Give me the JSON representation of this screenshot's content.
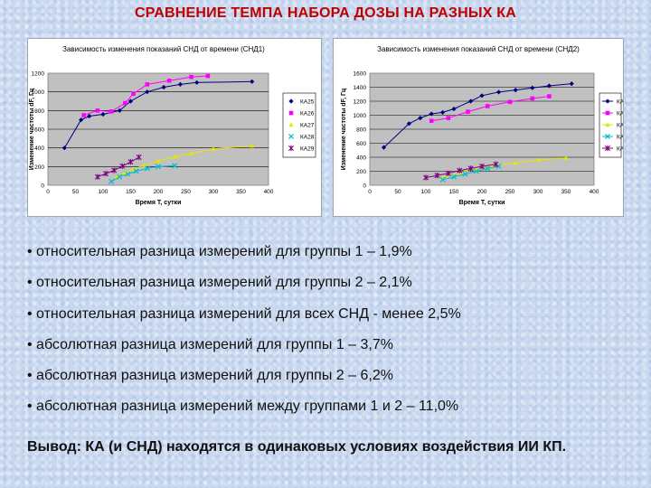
{
  "slide": {
    "title": "СРАВНЕНИЕ ТЕМПА НАБОРА ДОЗЫ НА РАЗНЫХ КА",
    "bullets": [
      "• относительная разница измерений для группы 1 – 1,9%",
      "• относительная разница измерений для группы 2 – 2,1%",
      "• относительная разница измерений для всех СНД - менее 2,5%",
      "• абсолютная разница измерений для группы 1 – 3,7%",
      "• абсолютная разница измерений для группы 2 – 6,2%",
      "• абсолютная разница измерений между группами 1 и 2 – 11,0%"
    ],
    "conclusion": "Вывод: КА (и СНД) находятся в одинаковых условиях воздействия ИИ КП."
  },
  "chart_data": [
    {
      "type": "scatter",
      "title": "Зависимость изменения показаний СНД от времени (СНД1)",
      "xlabel": "Время T, сутки",
      "ylabel": "Изменение частоты dF, Гц",
      "xlim": [
        0,
        400
      ],
      "ylim": [
        0,
        1200
      ],
      "xticks": [
        0,
        50,
        100,
        150,
        200,
        250,
        300,
        350,
        400
      ],
      "yticks": [
        0,
        200,
        400,
        600,
        800,
        1000,
        1200
      ],
      "grid": true,
      "plot_background": "#c0c0c0",
      "legend_position": "right",
      "series": [
        {
          "name": "КА25",
          "color": "#000080",
          "marker": "diamond",
          "line": true,
          "x": [
            30,
            60,
            75,
            100,
            130,
            150,
            180,
            210,
            240,
            270,
            370
          ],
          "y": [
            400,
            700,
            740,
            760,
            800,
            900,
            1000,
            1050,
            1080,
            1100,
            1110
          ]
        },
        {
          "name": "КА26",
          "color": "#ff00ff",
          "marker": "square",
          "line": true,
          "x": [
            65,
            90,
            115,
            140,
            155,
            180,
            220,
            260,
            290
          ],
          "y": [
            750,
            800,
            790,
            880,
            980,
            1080,
            1120,
            1160,
            1170
          ]
        },
        {
          "name": "КА27",
          "color": "#e6e600",
          "marker": "triangle",
          "line": true,
          "x": [
            125,
            140,
            155,
            175,
            200,
            230,
            260,
            300,
            370
          ],
          "y": [
            90,
            130,
            175,
            215,
            260,
            305,
            340,
            390,
            420
          ]
        },
        {
          "name": "КА28",
          "color": "#00bcd4",
          "marker": "x",
          "line": true,
          "x": [
            115,
            130,
            145,
            160,
            180,
            200,
            230
          ],
          "y": [
            40,
            90,
            120,
            150,
            180,
            200,
            210
          ]
        },
        {
          "name": "КА29",
          "color": "#800080",
          "marker": "star",
          "line": true,
          "x": [
            90,
            105,
            120,
            135,
            150,
            165
          ],
          "y": [
            90,
            125,
            160,
            205,
            250,
            300
          ]
        }
      ]
    },
    {
      "type": "scatter",
      "title": "Зависимость изменения показаний СНД от времени (СНД2)",
      "xlabel": "Время T, сутки",
      "ylabel": "Изменение частоты dF, Гц",
      "xlim": [
        0,
        400
      ],
      "ylim": [
        0,
        1600
      ],
      "xticks": [
        0,
        50,
        100,
        150,
        200,
        250,
        300,
        350,
        400
      ],
      "yticks": [
        0,
        200,
        400,
        600,
        800,
        1000,
        1200,
        1400,
        1600
      ],
      "grid": true,
      "plot_background": "#c0c0c0",
      "legend_position": "right",
      "series": [
        {
          "name": "КА25",
          "color": "#000080",
          "marker": "diamond",
          "line": true,
          "x": [
            25,
            70,
            90,
            110,
            130,
            150,
            180,
            200,
            230,
            260,
            290,
            320,
            360
          ],
          "y": [
            540,
            880,
            960,
            1020,
            1040,
            1090,
            1200,
            1280,
            1330,
            1360,
            1390,
            1420,
            1450
          ]
        },
        {
          "name": "КА26",
          "color": "#ff00ff",
          "marker": "square",
          "line": true,
          "x": [
            110,
            140,
            175,
            210,
            250,
            290,
            320
          ],
          "y": [
            920,
            960,
            1050,
            1130,
            1190,
            1240,
            1270
          ]
        },
        {
          "name": "КА27",
          "color": "#e6e600",
          "marker": "triangle",
          "line": true,
          "x": [
            130,
            160,
            190,
            220,
            260,
            300,
            350
          ],
          "y": [
            110,
            180,
            230,
            280,
            320,
            360,
            390
          ]
        },
        {
          "name": "КА28",
          "color": "#00bcd4",
          "marker": "x",
          "line": true,
          "x": [
            130,
            150,
            170,
            190,
            210,
            230
          ],
          "y": [
            80,
            120,
            160,
            200,
            240,
            270
          ]
        },
        {
          "name": "КА29",
          "color": "#800080",
          "marker": "star",
          "line": true,
          "x": [
            100,
            120,
            140,
            160,
            180,
            200,
            225
          ],
          "y": [
            110,
            140,
            170,
            210,
            240,
            270,
            300
          ]
        }
      ]
    }
  ]
}
